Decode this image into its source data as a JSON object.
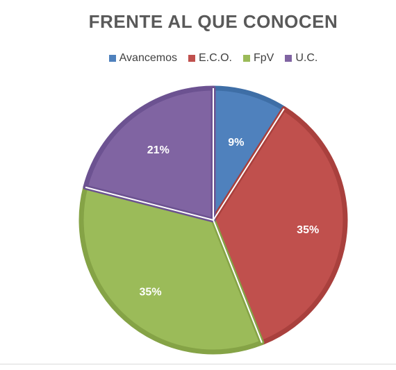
{
  "chart_data": {
    "type": "pie",
    "title": "FRENTE AL QUE CONOCEN",
    "categories": [
      "Avancemos",
      "E.C.O.",
      "FpV",
      "U.C."
    ],
    "values": [
      9,
      35,
      35,
      21
    ],
    "labels": [
      "9%",
      "35%",
      "35%",
      "21%"
    ],
    "colors": [
      "#4f81bd",
      "#c0504d",
      "#9bbb59",
      "#8064a2"
    ],
    "border_colors": [
      "#3e6ea6",
      "#a9403d",
      "#85a346",
      "#6c5291"
    ],
    "legend_position": "top"
  }
}
